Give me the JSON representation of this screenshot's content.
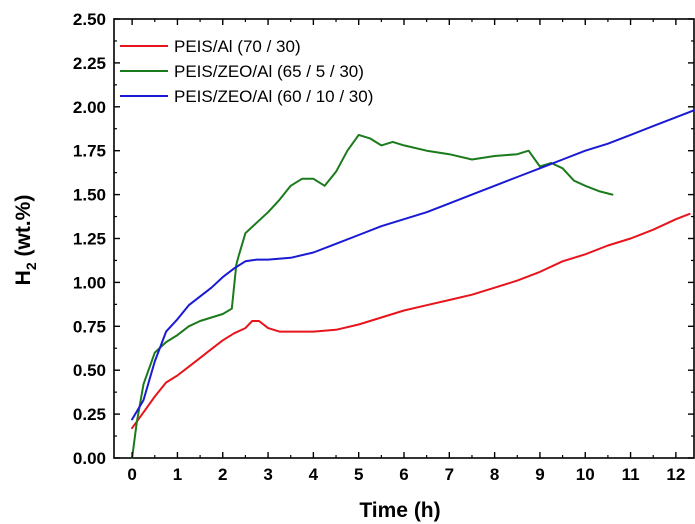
{
  "chart_data": {
    "type": "line",
    "xlabel": "Time (h)",
    "ylabel_main": "H",
    "ylabel_sub": "2",
    "ylabel_rest": " (wt.%)",
    "xlim": [
      -0.4,
      12.4
    ],
    "ylim": [
      0.0,
      2.5
    ],
    "xticks": [
      0,
      1,
      2,
      3,
      4,
      5,
      6,
      7,
      8,
      9,
      10,
      11,
      12
    ],
    "xtick_labels": [
      "0",
      "1",
      "2",
      "3",
      "4",
      "5",
      "6",
      "7",
      "8",
      "9",
      "10",
      "11",
      "12"
    ],
    "yticks": [
      0.0,
      0.25,
      0.5,
      0.75,
      1.0,
      1.25,
      1.5,
      1.75,
      2.0,
      2.25,
      2.5
    ],
    "ytick_labels": [
      "0.00",
      "0.25",
      "0.50",
      "0.75",
      "1.00",
      "1.25",
      "1.50",
      "1.75",
      "2.00",
      "2.25",
      "2.50"
    ],
    "grid": false,
    "legend_position": "top-left",
    "series": [
      {
        "name": "PEIS/Al (70 / 30)",
        "color": "#e8141c",
        "x": [
          0,
          0.25,
          0.5,
          0.75,
          1.0,
          1.25,
          1.5,
          1.75,
          2.0,
          2.25,
          2.5,
          2.65,
          2.8,
          3.0,
          3.25,
          3.5,
          4.0,
          4.5,
          5.0,
          5.5,
          6.0,
          6.5,
          7.0,
          7.5,
          8.0,
          8.5,
          9.0,
          9.5,
          10.0,
          10.5,
          11.0,
          11.5,
          12.0,
          12.3
        ],
        "y": [
          0.17,
          0.26,
          0.35,
          0.43,
          0.47,
          0.52,
          0.57,
          0.62,
          0.67,
          0.71,
          0.74,
          0.78,
          0.78,
          0.74,
          0.72,
          0.72,
          0.72,
          0.73,
          0.76,
          0.8,
          0.84,
          0.87,
          0.9,
          0.93,
          0.97,
          1.01,
          1.06,
          1.12,
          1.16,
          1.21,
          1.25,
          1.3,
          1.36,
          1.39
        ]
      },
      {
        "name": "PEIS/ZEO/Al (65 / 5 / 30)",
        "color": "#1b7a1b",
        "x": [
          0,
          0.1,
          0.25,
          0.5,
          0.75,
          1.0,
          1.25,
          1.5,
          1.75,
          2.0,
          2.2,
          2.3,
          2.35,
          2.5,
          2.75,
          3.0,
          3.25,
          3.5,
          3.75,
          4.0,
          4.25,
          4.5,
          4.75,
          5.0,
          5.25,
          5.5,
          5.75,
          6.0,
          6.5,
          7.0,
          7.5,
          8.0,
          8.5,
          8.75,
          9.0,
          9.25,
          9.5,
          9.75,
          10.0,
          10.3,
          10.6
        ],
        "y": [
          0.0,
          0.2,
          0.42,
          0.6,
          0.66,
          0.7,
          0.75,
          0.78,
          0.8,
          0.82,
          0.85,
          1.1,
          1.15,
          1.28,
          1.34,
          1.4,
          1.47,
          1.55,
          1.59,
          1.59,
          1.55,
          1.63,
          1.75,
          1.84,
          1.82,
          1.78,
          1.8,
          1.78,
          1.75,
          1.73,
          1.7,
          1.72,
          1.73,
          1.75,
          1.66,
          1.68,
          1.65,
          1.58,
          1.55,
          1.52,
          1.5
        ]
      },
      {
        "name": "PEIS/ZEO/Al (60 / 10 / 30)",
        "color": "#1a1ad4",
        "x": [
          0,
          0.25,
          0.5,
          0.75,
          1.0,
          1.25,
          1.5,
          1.75,
          2.0,
          2.25,
          2.5,
          2.75,
          3.0,
          3.5,
          4.0,
          4.5,
          5.0,
          5.5,
          6.0,
          6.5,
          7.0,
          7.5,
          8.0,
          8.5,
          9.0,
          9.5,
          10.0,
          10.5,
          11.0,
          11.5,
          12.0,
          12.4
        ],
        "y": [
          0.22,
          0.33,
          0.55,
          0.72,
          0.79,
          0.87,
          0.92,
          0.97,
          1.03,
          1.08,
          1.12,
          1.13,
          1.13,
          1.14,
          1.17,
          1.22,
          1.27,
          1.32,
          1.36,
          1.4,
          1.45,
          1.5,
          1.55,
          1.6,
          1.65,
          1.7,
          1.75,
          1.79,
          1.84,
          1.89,
          1.94,
          1.98
        ]
      }
    ]
  }
}
